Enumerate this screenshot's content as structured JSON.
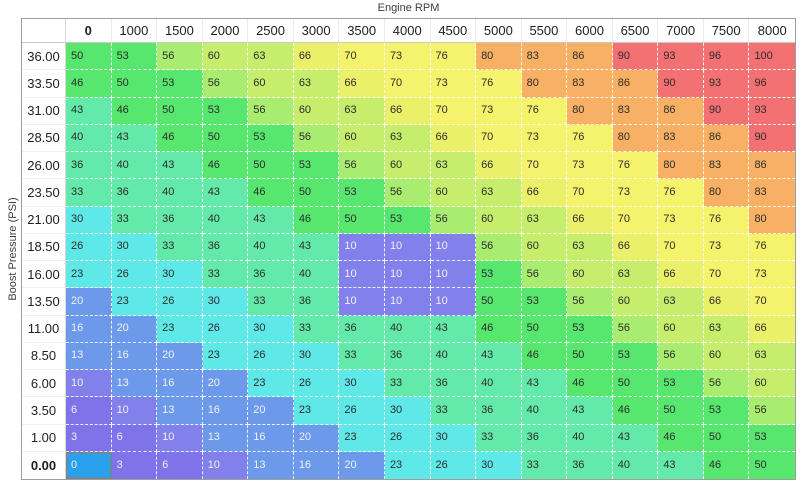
{
  "axes": {
    "x_title": "Engine RPM",
    "y_title": "Boost Pressure (PSI)"
  },
  "chart_data": {
    "type": "heatmap",
    "x_label": "Engine RPM",
    "y_label": "Boost Pressure (PSI)",
    "columns": [
      "0",
      "1000",
      "1500",
      "2000",
      "2500",
      "3000",
      "3500",
      "4000",
      "4500",
      "5000",
      "5500",
      "6000",
      "6500",
      "7000",
      "7500",
      "8000"
    ],
    "rows": [
      "36.00",
      "33.50",
      "31.00",
      "28.50",
      "26.00",
      "23.50",
      "21.00",
      "18.50",
      "16.00",
      "13.50",
      "11.00",
      "8.50",
      "6.00",
      "3.50",
      "1.00",
      "0.00"
    ],
    "values": [
      [
        50,
        53,
        56,
        60,
        63,
        66,
        70,
        73,
        76,
        80,
        83,
        86,
        90,
        93,
        96,
        100
      ],
      [
        46,
        50,
        53,
        56,
        60,
        63,
        66,
        70,
        73,
        76,
        80,
        83,
        86,
        90,
        93,
        96
      ],
      [
        43,
        46,
        50,
        53,
        56,
        60,
        63,
        66,
        70,
        73,
        76,
        80,
        83,
        86,
        90,
        93
      ],
      [
        40,
        43,
        46,
        50,
        53,
        56,
        60,
        63,
        66,
        70,
        73,
        76,
        80,
        83,
        86,
        90
      ],
      [
        36,
        40,
        43,
        46,
        50,
        53,
        56,
        60,
        63,
        66,
        70,
        73,
        76,
        80,
        83,
        86
      ],
      [
        33,
        36,
        40,
        43,
        46,
        50,
        53,
        56,
        60,
        63,
        66,
        70,
        73,
        76,
        80,
        83
      ],
      [
        30,
        33,
        36,
        40,
        43,
        46,
        50,
        53,
        56,
        60,
        63,
        66,
        70,
        73,
        76,
        80
      ],
      [
        26,
        30,
        33,
        36,
        40,
        43,
        10,
        10,
        10,
        56,
        60,
        63,
        66,
        70,
        73,
        76
      ],
      [
        23,
        26,
        30,
        33,
        36,
        40,
        10,
        10,
        10,
        53,
        56,
        60,
        63,
        66,
        70,
        73
      ],
      [
        20,
        23,
        26,
        30,
        33,
        36,
        10,
        10,
        10,
        50,
        53,
        56,
        60,
        63,
        66,
        70
      ],
      [
        16,
        20,
        23,
        26,
        30,
        33,
        36,
        40,
        43,
        46,
        50,
        53,
        56,
        60,
        63,
        66
      ],
      [
        13,
        16,
        20,
        23,
        26,
        30,
        33,
        36,
        40,
        43,
        46,
        50,
        53,
        56,
        60,
        63
      ],
      [
        10,
        13,
        16,
        20,
        23,
        26,
        30,
        33,
        36,
        40,
        43,
        46,
        50,
        53,
        56,
        60
      ],
      [
        6,
        10,
        13,
        16,
        20,
        23,
        26,
        30,
        33,
        36,
        40,
        43,
        46,
        50,
        53,
        56
      ],
      [
        3,
        6,
        10,
        13,
        16,
        20,
        23,
        26,
        30,
        33,
        36,
        40,
        43,
        46,
        50,
        53
      ],
      [
        0,
        3,
        6,
        10,
        13,
        16,
        20,
        23,
        26,
        30,
        33,
        36,
        40,
        43,
        46,
        50
      ]
    ],
    "selected_cell": {
      "row_label": "0.00",
      "col_label": "0",
      "row_index": 15,
      "col_index": 0,
      "value": 0
    },
    "selected_color": "#2ba1ee",
    "value_colors": {
      "0": "#7e73e9",
      "3": "#7e73e9",
      "6": "#7e73e9",
      "10": "#8280ea",
      "13": "#6c99ea",
      "16": "#6c99ea",
      "20": "#6c99ea",
      "23": "#5fe8e8",
      "26": "#5fe8e8",
      "30": "#5fe8e8",
      "33": "#63e9aa",
      "36": "#63e9aa",
      "40": "#63e9aa",
      "43": "#63e9aa",
      "46": "#57e66e",
      "50": "#57e66e",
      "53": "#57e66e",
      "56": "#a8ec70",
      "60": "#c6ee6c",
      "63": "#c6ee6c",
      "66": "#eaf06a",
      "70": "#f5f26c",
      "73": "#f5f26c",
      "76": "#f5f26c",
      "80": "#f8b164",
      "83": "#f8b164",
      "86": "#f8b164",
      "90": "#f37173",
      "93": "#f37173",
      "96": "#f37173",
      "100": "#f37173"
    },
    "text_dark": "#2d2d2d",
    "text_light": "rgba(255,255,255,0.88)",
    "light_text_max_value": 20
  }
}
